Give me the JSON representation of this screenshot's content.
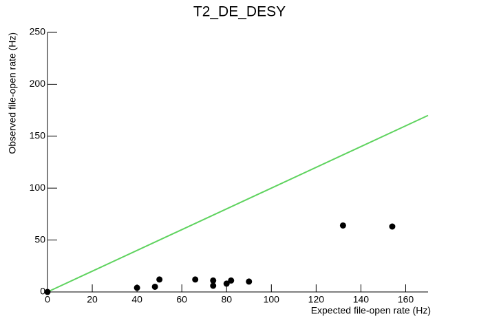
{
  "chart_data": {
    "type": "scatter",
    "title": "T2_DE_DESY",
    "x_label": "Expected file-open rate (Hz)",
    "y_label": "Observed file-open rate (Hz)",
    "series": [
      {
        "color": "#000000",
        "x": [
          0,
          40,
          48,
          50,
          66,
          74,
          74,
          80,
          82,
          90,
          132,
          154
        ],
        "values": [
          0,
          4,
          5,
          12,
          12,
          6,
          11,
          8,
          11,
          10,
          64,
          63
        ]
      }
    ],
    "lines": [
      {
        "color": "#5fd35f",
        "x": [
          0,
          170
        ],
        "values": [
          0,
          170
        ]
      }
    ],
    "xlim": [
      0,
      170
    ],
    "xticks": [
      0,
      20,
      40,
      60,
      80,
      100,
      120,
      140,
      160
    ],
    "ylim": [
      0,
      250
    ],
    "yticks": [
      0,
      50,
      100,
      150,
      200,
      250
    ]
  }
}
